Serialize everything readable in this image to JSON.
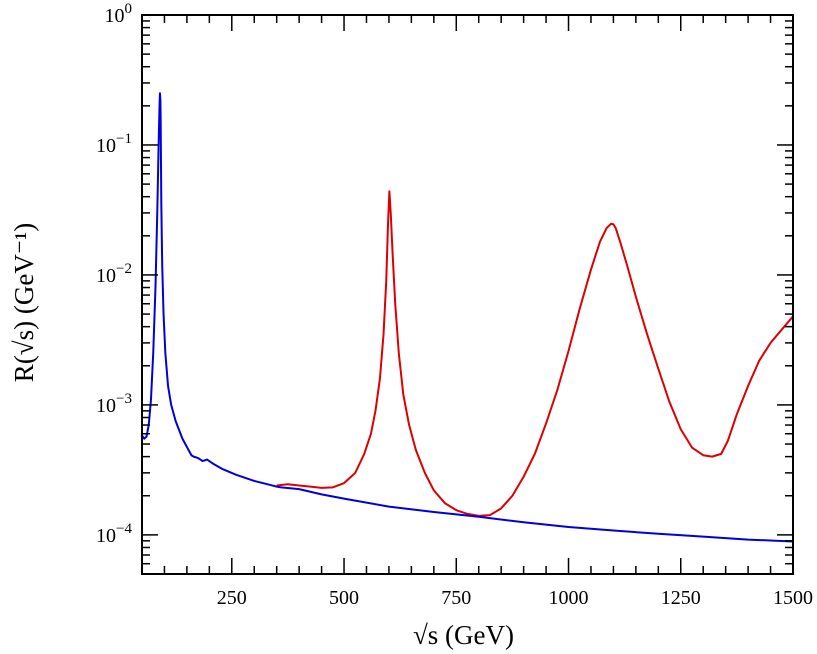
{
  "chart_data": {
    "type": "line",
    "title": "",
    "xlabel": "√s (GeV)",
    "ylabel": "R(√s)    (GeV⁻¹)",
    "xlim": [
      50,
      1500
    ],
    "ylim": [
      5e-05,
      1
    ],
    "yscale": "log",
    "grid": false,
    "xticks": [
      250,
      500,
      750,
      1000,
      1250,
      1500
    ],
    "yticks": [
      {
        "value": 0.0001,
        "base": "10",
        "exp": "−4"
      },
      {
        "value": 0.001,
        "base": "10",
        "exp": "−3"
      },
      {
        "value": 0.01,
        "base": "10",
        "exp": "−2"
      },
      {
        "value": 0.1,
        "base": "10",
        "exp": "−1"
      },
      {
        "value": 1,
        "base": "10",
        "exp": "0"
      }
    ],
    "series": [
      {
        "color": "#dd0000",
        "x": [
          350,
          375,
          400,
          425,
          450,
          475,
          500,
          525,
          545,
          560,
          570,
          580,
          588,
          594,
          598,
          601,
          604,
          608,
          614,
          622,
          632,
          645,
          660,
          680,
          700,
          725,
          750,
          775,
          800,
          825,
          850,
          875,
          900,
          925,
          950,
          975,
          1000,
          1025,
          1050,
          1070,
          1085,
          1095,
          1100,
          1105,
          1115,
          1130,
          1150,
          1175,
          1200,
          1225,
          1250,
          1275,
          1300,
          1320,
          1340,
          1355,
          1375,
          1400,
          1425,
          1450,
          1475,
          1500
        ],
        "y": [
          0.00024,
          0.000245,
          0.00024,
          0.000235,
          0.00023,
          0.000232,
          0.00025,
          0.0003,
          0.00042,
          0.0006,
          0.0009,
          0.0016,
          0.0035,
          0.009,
          0.025,
          0.044,
          0.03,
          0.015,
          0.006,
          0.0025,
          0.0012,
          0.0007,
          0.00045,
          0.0003,
          0.00022,
          0.000175,
          0.000155,
          0.000145,
          0.00014,
          0.000142,
          0.00016,
          0.0002,
          0.00028,
          0.00042,
          0.00072,
          0.0013,
          0.0026,
          0.0055,
          0.011,
          0.018,
          0.023,
          0.0248,
          0.0245,
          0.023,
          0.018,
          0.012,
          0.0068,
          0.0035,
          0.0019,
          0.00105,
          0.00065,
          0.00047,
          0.00041,
          0.0004,
          0.00042,
          0.00053,
          0.00085,
          0.0014,
          0.0022,
          0.003,
          0.0038,
          0.0048
        ]
      },
      {
        "color": "#0000dd",
        "x": [
          50,
          55,
          60,
          65,
          70,
          75,
          80,
          84,
          87,
          89,
          90,
          91,
          91.6,
          92.2,
          93,
          95,
          98,
          102,
          108,
          115,
          125,
          140,
          160,
          165,
          175,
          185,
          195,
          210,
          230,
          260,
          300,
          340,
          350,
          360,
          400,
          450,
          500,
          600,
          700,
          800,
          900,
          1000,
          1100,
          1200,
          1300,
          1400,
          1500
        ],
        "y": [
          0.00058,
          0.00055,
          0.00057,
          0.0007,
          0.0011,
          0.0025,
          0.008,
          0.03,
          0.1,
          0.2,
          0.25,
          0.22,
          0.15,
          0.08,
          0.035,
          0.012,
          0.005,
          0.0025,
          0.0014,
          0.001,
          0.00075,
          0.00055,
          0.00041,
          0.0004,
          0.00039,
          0.00037,
          0.00038,
          0.00035,
          0.00032,
          0.00029,
          0.00026,
          0.00024,
          0.000235,
          0.000232,
          0.000225,
          0.000205,
          0.00019,
          0.000165,
          0.00015,
          0.000138,
          0.000125,
          0.000115,
          0.000108,
          0.000102,
          9.7e-05,
          9.2e-05,
          8.9e-05
        ]
      }
    ]
  }
}
